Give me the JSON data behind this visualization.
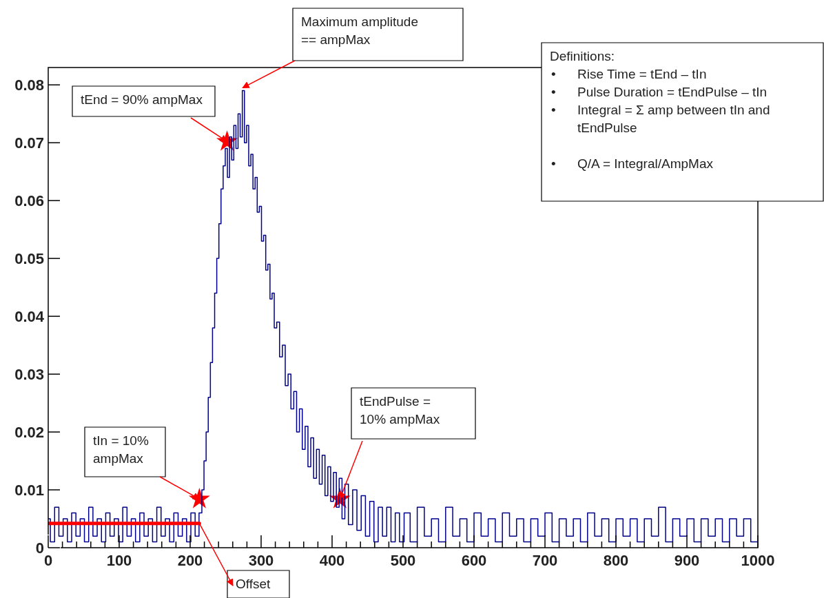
{
  "chart_data": {
    "type": "step",
    "xlim": [
      0,
      1000
    ],
    "ylim": [
      0,
      0.083
    ],
    "xticks": [
      0,
      {
        "value": 20,
        "label": null
      },
      {
        "value": 40,
        "label": null
      },
      {
        "value": 60,
        "label": null
      },
      {
        "value": 80,
        "label": null
      },
      100,
      {
        "value": 120,
        "label": null
      },
      {
        "value": 140,
        "label": null
      },
      {
        "value": 160,
        "label": null
      },
      {
        "value": 180,
        "label": null
      },
      200,
      {
        "value": 220,
        "label": null
      },
      {
        "value": 240,
        "label": null
      },
      {
        "value": 260,
        "label": null
      },
      {
        "value": 280,
        "label": null
      },
      300,
      {
        "value": 320,
        "label": null
      },
      {
        "value": 340,
        "label": null
      },
      {
        "value": 360,
        "label": null
      },
      {
        "value": 380,
        "label": null
      },
      400,
      {
        "value": 420,
        "label": null
      },
      {
        "value": 440,
        "label": null
      },
      {
        "value": 460,
        "label": null
      },
      {
        "value": 480,
        "label": null
      },
      500,
      {
        "value": 520,
        "label": null
      },
      {
        "value": 540,
        "label": null
      },
      {
        "value": 560,
        "label": null
      },
      {
        "value": 580,
        "label": null
      },
      600,
      {
        "value": 620,
        "label": null
      },
      {
        "value": 640,
        "label": null
      },
      {
        "value": 660,
        "label": null
      },
      {
        "value": 680,
        "label": null
      },
      700,
      {
        "value": 720,
        "label": null
      },
      {
        "value": 740,
        "label": null
      },
      {
        "value": 760,
        "label": null
      },
      {
        "value": 780,
        "label": null
      },
      800,
      {
        "value": 820,
        "label": null
      },
      {
        "value": 840,
        "label": null
      },
      {
        "value": 860,
        "label": null
      },
      {
        "value": 880,
        "label": null
      },
      900,
      {
        "value": 920,
        "label": null
      },
      {
        "value": 940,
        "label": null
      },
      {
        "value": 960,
        "label": null
      },
      {
        "value": 980,
        "label": null
      },
      1000
    ],
    "yticks": [
      0,
      0.01,
      0.02,
      0.03,
      0.04,
      0.05,
      0.06,
      0.07,
      0.08
    ],
    "series": [
      {
        "color": "#00008b",
        "x": [
          0,
          6,
          12,
          18,
          24,
          30,
          36,
          42,
          48,
          54,
          60,
          66,
          72,
          78,
          84,
          90,
          96,
          102,
          108,
          114,
          120,
          126,
          132,
          138,
          144,
          150,
          156,
          162,
          168,
          174,
          180,
          186,
          192,
          198,
          204,
          210,
          215,
          218,
          221,
          224,
          227,
          230,
          233,
          236,
          239,
          242,
          245,
          248,
          251,
          254,
          257,
          260,
          263,
          266,
          269,
          272,
          275,
          278,
          281,
          284,
          287,
          290,
          293,
          296,
          299,
          302,
          305,
          308,
          311,
          314,
          317,
          320,
          324,
          328,
          332,
          336,
          340,
          344,
          348,
          352,
          356,
          360,
          364,
          368,
          372,
          376,
          380,
          384,
          388,
          392,
          396,
          400,
          404,
          408,
          412,
          416,
          420,
          426,
          432,
          438,
          444,
          450,
          456,
          462,
          468,
          474,
          480,
          486,
          492,
          498,
          505,
          515,
          525,
          535,
          545,
          555,
          565,
          575,
          585,
          595,
          605,
          615,
          625,
          635,
          645,
          655,
          665,
          675,
          685,
          695,
          705,
          715,
          725,
          735,
          745,
          755,
          765,
          775,
          785,
          795,
          805,
          815,
          825,
          835,
          845,
          855,
          865,
          875,
          885,
          895,
          905,
          915,
          925,
          935,
          945,
          955,
          965,
          975,
          985,
          995,
          1000
        ],
        "values": [
          0.005,
          0.001,
          0.007,
          0.002,
          0.005,
          0.001,
          0.006,
          0.002,
          0.005,
          0.001,
          0.007,
          0.002,
          0.005,
          0.001,
          0.006,
          0.002,
          0.005,
          0.001,
          0.007,
          0.002,
          0.005,
          0.001,
          0.006,
          0.002,
          0.005,
          0.001,
          0.007,
          0.002,
          0.005,
          0.001,
          0.006,
          0.002,
          0.005,
          0.001,
          0.006,
          0.002,
          0.006,
          0.01,
          0.015,
          0.02,
          0.026,
          0.032,
          0.038,
          0.044,
          0.05,
          0.056,
          0.062,
          0.066,
          0.069,
          0.064,
          0.071,
          0.067,
          0.073,
          0.069,
          0.075,
          0.071,
          0.079,
          0.07,
          0.073,
          0.066,
          0.068,
          0.062,
          0.064,
          0.058,
          0.059,
          0.053,
          0.054,
          0.048,
          0.049,
          0.043,
          0.044,
          0.038,
          0.039,
          0.033,
          0.035,
          0.028,
          0.03,
          0.024,
          0.027,
          0.02,
          0.024,
          0.017,
          0.021,
          0.014,
          0.019,
          0.012,
          0.017,
          0.011,
          0.016,
          0.009,
          0.014,
          0.008,
          0.013,
          0.007,
          0.012,
          0.005,
          0.011,
          0.004,
          0.01,
          0.003,
          0.009,
          0.002,
          0.008,
          0.001,
          0.007,
          0.002,
          0.007,
          0.001,
          0.006,
          0.001,
          0.006,
          0.001,
          0.007,
          0.002,
          0.005,
          0.001,
          0.007,
          0.002,
          0.005,
          0.001,
          0.006,
          0.002,
          0.005,
          0.001,
          0.006,
          0.002,
          0.005,
          0.001,
          0.005,
          0.002,
          0.006,
          0.001,
          0.005,
          0.002,
          0.005,
          0.001,
          0.006,
          0.002,
          0.005,
          0.001,
          0.005,
          0.002,
          0.005,
          0.001,
          0.005,
          0.002,
          0.007,
          0.001,
          0.005,
          0.002,
          0.005,
          0.001,
          0.005,
          0.002,
          0.005,
          0.001,
          0.005,
          0.002,
          0.005,
          0.001,
          0.001
        ]
      },
      {
        "type": "line",
        "color": "#ff0000",
        "x": [
          0,
          213
        ],
        "values": [
          0.0042,
          0.0042
        ]
      },
      {
        "type": "scatter",
        "color": "#ff0000",
        "marker": "star",
        "x": [
          213,
          252,
          411
        ],
        "values": [
          0.0084,
          0.0702,
          0.0084
        ]
      }
    ],
    "annotations": [
      {
        "text": "Maximum amplitude\n== ampMax",
        "x": 274,
        "y": 0.0795
      },
      {
        "text": "tEnd = 90% ampMax",
        "x": 252,
        "y": 0.0702
      },
      {
        "text": "tIn = 10%\nampMax",
        "x": 213,
        "y": 0.0084
      },
      {
        "text": "tEndPulse =\n10% ampMax",
        "x": 411,
        "y": 0.0084
      },
      {
        "text": "Offset",
        "x": 213,
        "y": 0.0042
      },
      "Definitions:\n•\tRise Time = tEnd – tIn\n•\tPulse Duration = tEndPulse – tIn\n•\tIntegral = Σ amp between tIn and\n\ttEndPulse\n\n•\tQ/A = Integral/AmpMax"
    ]
  }
}
